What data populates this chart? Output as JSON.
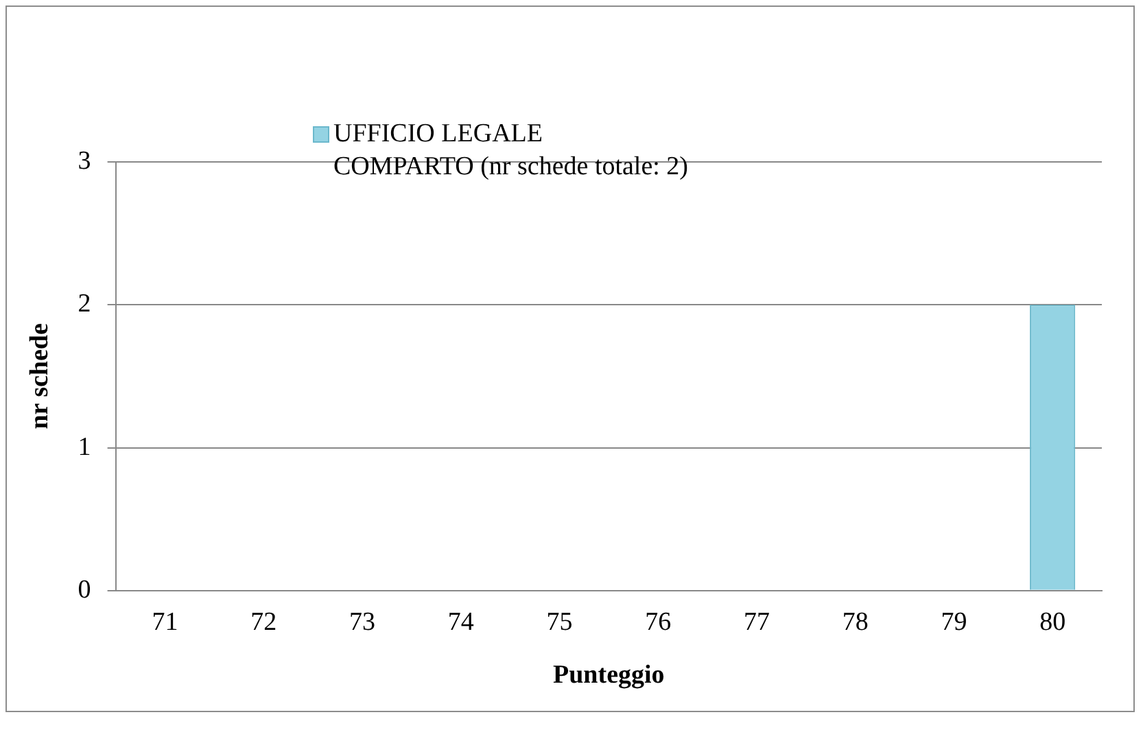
{
  "chart_data": {
    "type": "bar",
    "xlabel": "Punteggio",
    "ylabel": "nr schede",
    "categories": [
      "71",
      "72",
      "73",
      "74",
      "75",
      "76",
      "77",
      "78",
      "79",
      "80"
    ],
    "series": [
      {
        "name": "UFFICIO LEGALE\nCOMPARTO (nr schede totale: 2)",
        "color": "#94d3e3",
        "values": [
          0,
          0,
          0,
          0,
          0,
          0,
          0,
          0,
          0,
          2
        ]
      }
    ],
    "ylim": [
      0,
      3
    ],
    "yticks": [
      0,
      1,
      2,
      3
    ],
    "grid": "y",
    "legend": "top"
  }
}
